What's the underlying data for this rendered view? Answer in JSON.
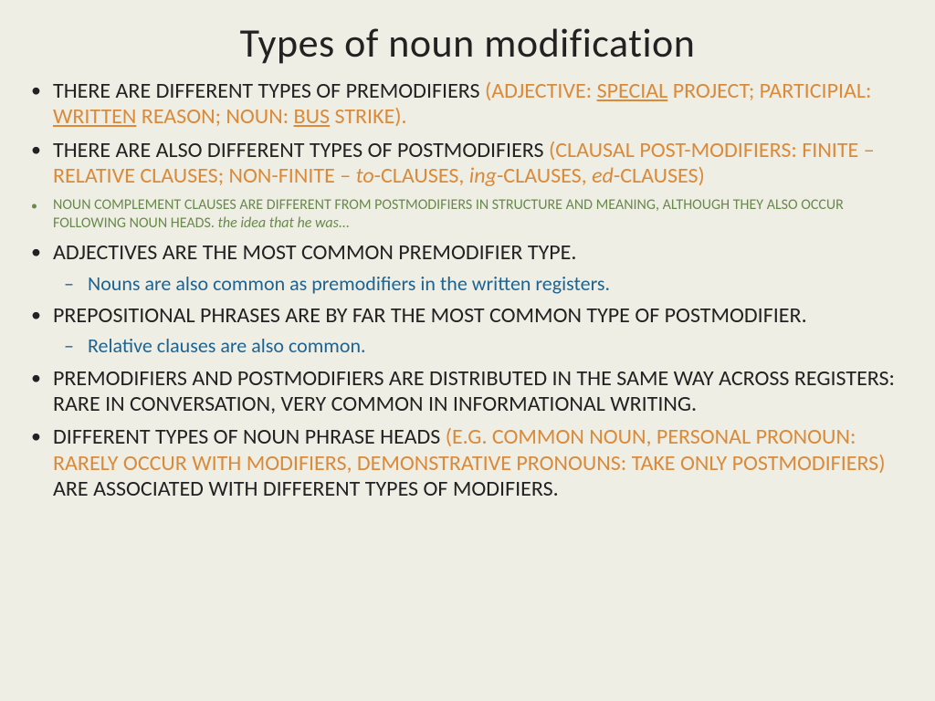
{
  "title": "Types of noun modification",
  "bullets": {
    "b1_lead": "There are different types of premodifiers ",
    "b1_paren": "(adjective: ",
    "b1_adj": "special",
    "b1_mid1": " project; participial: ",
    "b1_part": "written",
    "b1_mid2": " reason; noun: ",
    "b1_noun": "bus",
    "b1_end": " strike).",
    "b2_lead": "There are also different types of postmodifiers ",
    "b2_par1": "(clausal post-modifiers: finite – relative clauses; non-finite – ",
    "b2_to": "to",
    "b2_mid1": "-clauses, ",
    "b2_ing": "ing",
    "b2_mid2": "-clauses, ",
    "b2_ed": "ed",
    "b2_end": "-clauses)",
    "b3_lead": "noun complement clauses  are different from postmodifiers in structure and meaning, although they also occur following noun heads. ",
    "b3_ex": "the idea that he was...",
    "b4": "Adjectives are the most common premodifier type.",
    "b4_sub": "Nouns are also common as premodifiers in the written registers.",
    "b5": "Prepositional phrases are by far the most common type of postmodifier.",
    "b5_sub": "Relative clauses are also common.",
    "b6": "Premodifiers and postmodifiers are distributed in the same way across registers: rare in conversation, very common in informational writing.",
    "b7_lead": "Different types of noun phrase heads ",
    "b7_paren": "(e.g. common noun, personal pronoun: rarely occur with modifiers, demonstrative pronouns: take only postmodifiers)",
    "b7_end": " are associated with different types of modifiers."
  },
  "colors": {
    "background": "#eeeee4",
    "body_text": "#222222",
    "orange": "#d98a3a",
    "green": "#688a4a",
    "blue": "#1f6390"
  },
  "fonts": {
    "title_size": 44,
    "body_size": 24,
    "sub_size": 22,
    "green_size": 16,
    "family": "Calibri"
  }
}
